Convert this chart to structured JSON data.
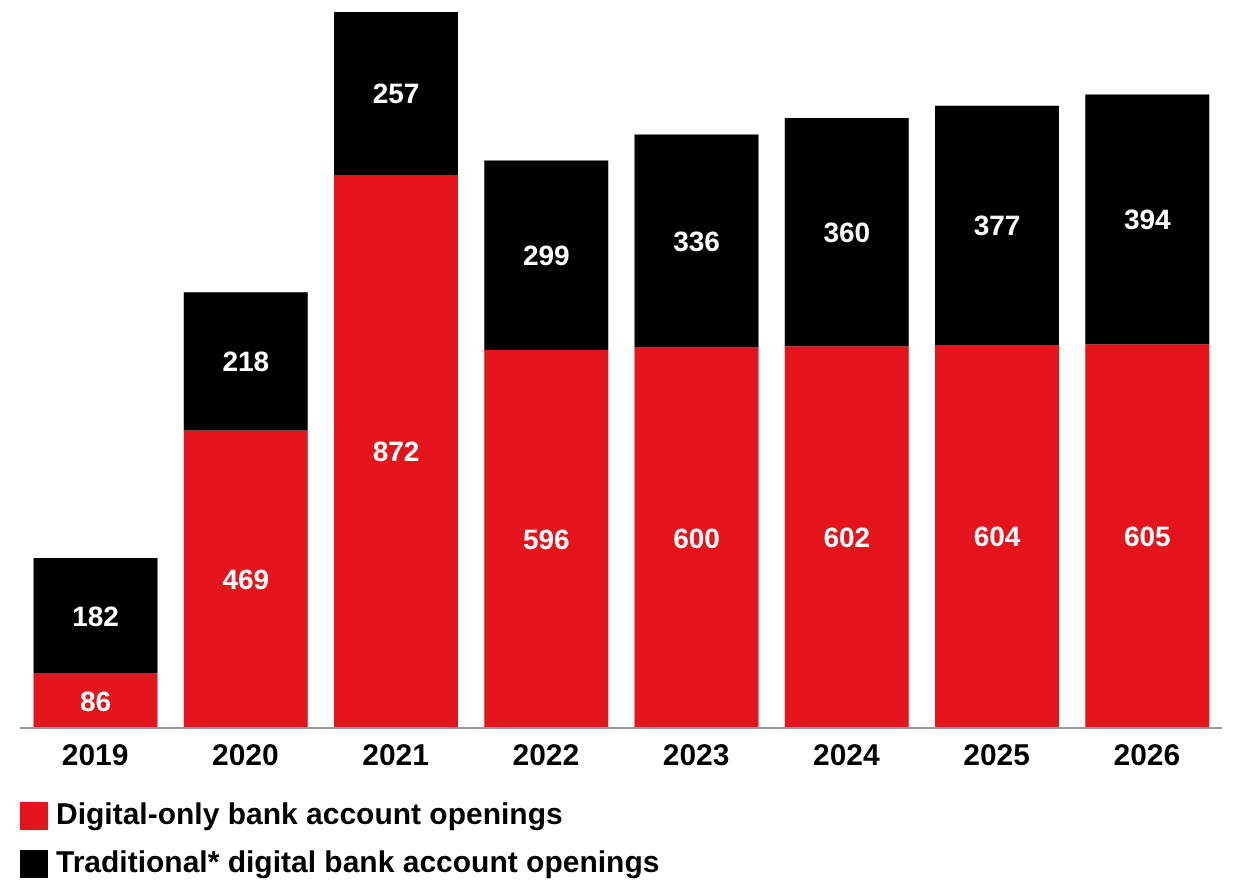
{
  "chart_data": {
    "type": "bar",
    "stacked": true,
    "data_labels": true,
    "legend": "bottom left",
    "categories": [
      "2019",
      "2020",
      "2021",
      "2022",
      "2023",
      "2024",
      "2025",
      "2026"
    ],
    "series": [
      {
        "name": "Digital-only bank account openings",
        "color": "#e3141b",
        "values": [
          86,
          469,
          872,
          596,
          600,
          602,
          604,
          605
        ]
      },
      {
        "name": "Traditional* digital bank account openings",
        "color": "#000000",
        "values": [
          182,
          218,
          257,
          299,
          336,
          360,
          377,
          394
        ]
      }
    ]
  }
}
